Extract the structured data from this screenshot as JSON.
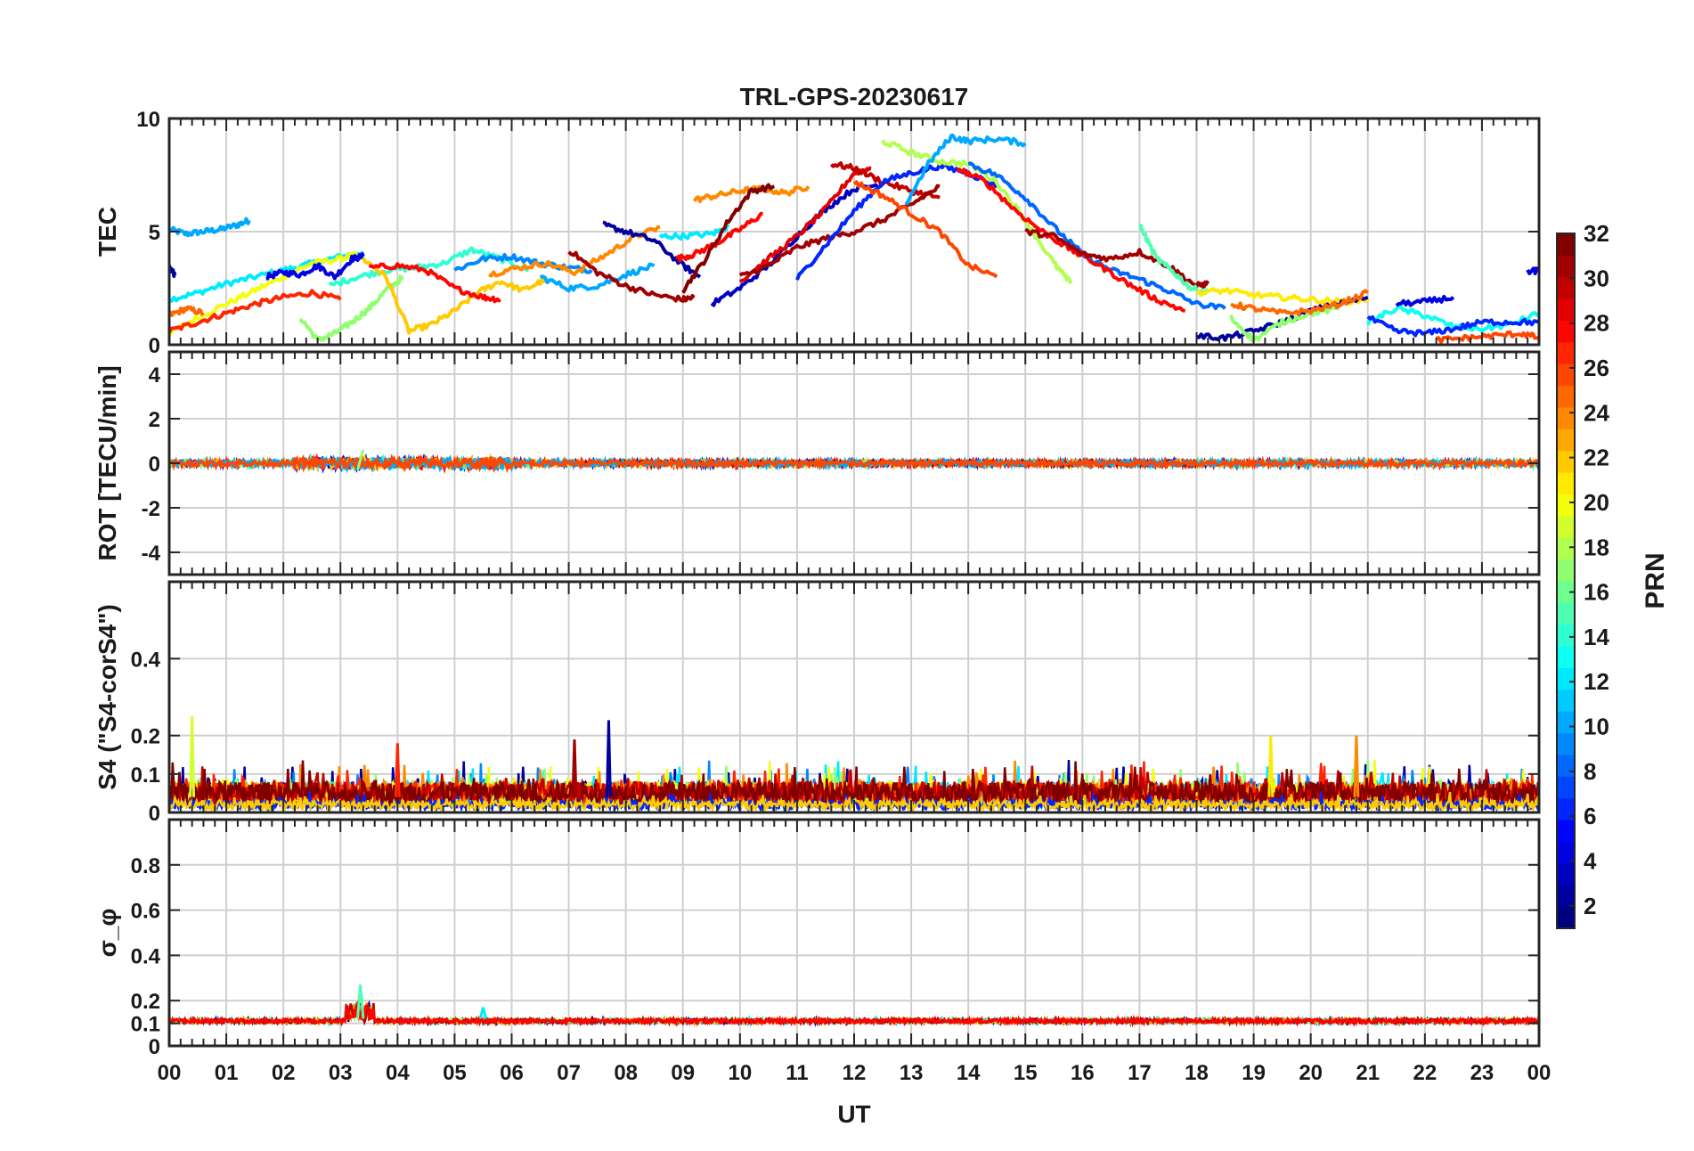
{
  "chart_data": {
    "title": "TRL-GPS-20230617",
    "type": "line",
    "x_axis": {
      "label": "UT",
      "range": [
        0,
        24
      ],
      "unit": "hours",
      "tick_labels": [
        "00",
        "01",
        "02",
        "03",
        "04",
        "05",
        "06",
        "07",
        "08",
        "09",
        "10",
        "11",
        "12",
        "13",
        "14",
        "15",
        "16",
        "17",
        "18",
        "19",
        "20",
        "21",
        "22",
        "23",
        "00"
      ],
      "grid": true
    },
    "colorbar": {
      "label": "PRN",
      "range": [
        1,
        32
      ],
      "colormap": "jet",
      "tick_labels": [
        "2",
        "4",
        "6",
        "8",
        "10",
        "12",
        "14",
        "16",
        "18",
        "20",
        "22",
        "24",
        "26",
        "28",
        "30",
        "32"
      ]
    },
    "panels": [
      {
        "name": "TEC",
        "ylabel": "TEC",
        "ylim": [
          0,
          10
        ],
        "yticks": [
          "0",
          "5",
          "10"
        ],
        "series": [
          {
            "prn": 10,
            "x": [
              0.0,
              0.3,
              0.6,
              0.9,
              1.2,
              1.4
            ],
            "y": [
              5.1,
              4.9,
              5.0,
              5.1,
              5.3,
              5.5
            ]
          },
          {
            "prn": 12,
            "x": [
              0.0,
              0.5,
              1.0,
              1.5,
              2.0,
              2.5,
              3.0,
              3.4
            ],
            "y": [
              2.0,
              2.3,
              2.7,
              3.0,
              3.3,
              3.6,
              3.9,
              4.1
            ]
          },
          {
            "prn": 20,
            "x": [
              0.0,
              0.5,
              1.0,
              1.5,
              2.0,
              2.5,
              3.0,
              3.3
            ],
            "y": [
              0.5,
              1.2,
              1.8,
              2.4,
              3.0,
              3.6,
              3.8,
              4.0
            ]
          },
          {
            "prn": 25,
            "x": [
              0.0,
              0.3,
              0.6
            ],
            "y": [
              1.3,
              1.6,
              1.4
            ]
          },
          {
            "prn": 27,
            "x": [
              0.0,
              0.5,
              1.0,
              1.5,
              2.0,
              2.5,
              3.0
            ],
            "y": [
              0.6,
              1.0,
              1.4,
              1.8,
              2.1,
              2.3,
              2.0
            ]
          },
          {
            "prn": 2,
            "x": [
              0.0,
              0.1
            ],
            "y": [
              3.4,
              3.1
            ]
          },
          {
            "prn": 4,
            "x": [
              1.7,
              2.0,
              2.3,
              2.6,
              2.9,
              3.2,
              3.4
            ],
            "y": [
              3.0,
              3.2,
              3.1,
              3.5,
              3.0,
              3.8,
              3.9
            ]
          },
          {
            "prn": 17,
            "x": [
              2.3,
              2.6,
              2.9,
              3.2,
              3.5,
              3.8,
              4.1
            ],
            "y": [
              1.2,
              0.2,
              0.5,
              1.0,
              1.6,
              2.4,
              3.0
            ]
          },
          {
            "prn": 14,
            "x": [
              2.8,
              3.3,
              3.8,
              4.3,
              4.8,
              5.3,
              5.8,
              6.3
            ],
            "y": [
              2.6,
              3.0,
              3.3,
              3.4,
              3.6,
              4.2,
              3.8,
              3.3
            ]
          },
          {
            "prn": 22,
            "x": [
              3.4,
              3.8,
              4.2,
              4.6,
              5.0,
              5.4,
              5.8,
              6.2,
              6.6
            ],
            "y": [
              3.8,
              3.0,
              0.6,
              0.9,
              1.5,
              2.3,
              2.8,
              2.4,
              2.9
            ]
          },
          {
            "prn": 28,
            "x": [
              3.5,
              4.0,
              4.5,
              5.0,
              5.5,
              5.8
            ],
            "y": [
              3.4,
              3.5,
              3.3,
              2.5,
              2.1,
              2.0
            ]
          },
          {
            "prn": 9,
            "x": [
              5.0,
              5.5,
              6.0,
              6.5,
              7.0,
              7.4
            ],
            "y": [
              3.3,
              3.8,
              3.9,
              3.6,
              3.4,
              3.3
            ]
          },
          {
            "prn": 24,
            "x": [
              5.6,
              6.1,
              6.6,
              7.1,
              7.6,
              8.1,
              8.6
            ],
            "y": [
              3.1,
              3.4,
              3.6,
              3.2,
              3.9,
              4.7,
              5.2
            ]
          },
          {
            "prn": 10,
            "x": [
              6.5,
              7.0,
              7.5,
              8.0,
              8.5
            ],
            "y": [
              3.0,
              2.5,
              2.6,
              3.1,
              3.5
            ]
          },
          {
            "prn": 2,
            "x": [
              7.6,
              8.0,
              8.5,
              9.0,
              9.3
            ],
            "y": [
              5.3,
              5.0,
              4.6,
              3.5,
              3.0
            ]
          },
          {
            "prn": 31,
            "x": [
              7.0,
              7.5,
              8.0,
              8.5,
              9.0,
              9.2
            ],
            "y": [
              4.2,
              3.2,
              2.6,
              2.2,
              2.0,
              2.1
            ]
          },
          {
            "prn": 12,
            "x": [
              8.6,
              9.0,
              9.5,
              9.8
            ],
            "y": [
              4.8,
              4.8,
              4.9,
              5.2
            ]
          },
          {
            "prn": 28,
            "x": [
              8.9,
              9.2,
              9.6,
              10.0,
              10.4
            ],
            "y": [
              3.8,
              4.0,
              4.5,
              5.1,
              5.8
            ]
          },
          {
            "prn": 24,
            "x": [
              9.2,
              9.6,
              10.0,
              10.4,
              10.8,
              11.2
            ],
            "y": [
              6.4,
              6.6,
              6.8,
              6.9,
              6.7,
              7.0
            ]
          },
          {
            "prn": 32,
            "x": [
              9.0,
              9.4,
              9.8,
              10.2,
              10.6
            ],
            "y": [
              2.4,
              3.8,
              5.5,
              6.8,
              7.0
            ]
          },
          {
            "prn": 3,
            "x": [
              9.5,
              10.0,
              10.5,
              11.0,
              11.5,
              12.0,
              12.5
            ],
            "y": [
              1.8,
              2.5,
              3.5,
              4.8,
              6.0,
              6.9,
              7.1
            ]
          },
          {
            "prn": 29,
            "x": [
              10.0,
              10.5,
              11.0,
              11.5,
              12.0,
              12.3
            ],
            "y": [
              2.8,
              3.8,
              4.8,
              6.0,
              7.6,
              7.8
            ]
          },
          {
            "prn": 30,
            "x": [
              11.6,
              12.0,
              12.5,
              13.0,
              13.5
            ],
            "y": [
              8.0,
              7.8,
              7.2,
              6.8,
              6.5
            ]
          },
          {
            "prn": 31,
            "x": [
              10.0,
              10.5,
              11.0,
              11.5,
              12.0,
              12.5,
              13.0,
              13.5
            ],
            "y": [
              3.0,
              3.5,
              4.3,
              4.7,
              5.0,
              5.5,
              6.2,
              7.0
            ]
          },
          {
            "prn": 6,
            "x": [
              11.0,
              11.5,
              12.0,
              12.5,
              13.0,
              13.5,
              14.0,
              14.5
            ],
            "y": [
              2.9,
              4.4,
              5.9,
              7.2,
              7.6,
              7.9,
              7.6,
              7.0
            ]
          },
          {
            "prn": 26,
            "x": [
              12.0,
              12.5,
              13.0,
              13.5,
              14.0,
              14.5
            ],
            "y": [
              7.2,
              6.6,
              5.8,
              5.0,
              3.5,
              3.0
            ]
          },
          {
            "prn": 18,
            "x": [
              12.5,
              13.0,
              13.5,
              14.0,
              14.5,
              15.0,
              15.5,
              15.8
            ],
            "y": [
              9.0,
              8.5,
              8.1,
              8.0,
              7.2,
              5.5,
              3.6,
              2.7
            ]
          },
          {
            "prn": 10,
            "x": [
              12.9,
              13.3,
              13.7,
              14.0,
              14.5,
              15.0
            ],
            "y": [
              6.2,
              8.0,
              9.2,
              9.0,
              9.1,
              8.9
            ]
          },
          {
            "prn": 8,
            "x": [
              14.0,
              14.5,
              15.0,
              15.5,
              16.0,
              16.5,
              17.0,
              17.5,
              18.0,
              18.5
            ],
            "y": [
              8.0,
              7.5,
              6.5,
              5.2,
              4.0,
              3.3,
              2.9,
              2.4,
              1.8,
              1.6
            ]
          },
          {
            "prn": 28,
            "x": [
              13.8,
              14.3,
              14.8,
              15.3,
              15.8,
              16.3,
              16.8,
              17.3,
              17.8
            ],
            "y": [
              7.8,
              7.2,
              6.0,
              5.0,
              4.2,
              3.5,
              2.7,
              2.0,
              1.5
            ]
          },
          {
            "prn": 31,
            "x": [
              15.0,
              15.5,
              16.0,
              16.5,
              17.0,
              17.5,
              18.0,
              18.2
            ],
            "y": [
              5.0,
              4.8,
              4.0,
              3.8,
              4.1,
              3.5,
              2.6,
              2.7
            ]
          },
          {
            "prn": 15,
            "x": [
              17.0,
              17.3,
              17.6,
              17.9,
              18.2
            ],
            "y": [
              5.3,
              3.8,
              3.2,
              2.5,
              2.3
            ]
          },
          {
            "prn": 21,
            "x": [
              18.0,
              18.5,
              19.0,
              19.5,
              20.0,
              20.5,
              21.0
            ],
            "y": [
              2.3,
              2.4,
              2.2,
              2.1,
              2.0,
              1.9,
              2.0
            ]
          },
          {
            "prn": 2,
            "x": [
              18.0,
              18.5,
              19.0,
              19.5,
              20.0,
              20.5,
              21.0
            ],
            "y": [
              0.4,
              0.3,
              0.6,
              1.0,
              1.5,
              1.8,
              2.1
            ]
          },
          {
            "prn": 17,
            "x": [
              18.6,
              19.0,
              19.5,
              20.0,
              20.5
            ],
            "y": [
              1.2,
              0.2,
              1.0,
              1.4,
              1.6
            ]
          },
          {
            "prn": 25,
            "x": [
              18.6,
              19.0,
              19.5,
              20.0,
              20.5,
              21.0
            ],
            "y": [
              1.8,
              1.6,
              1.4,
              1.5,
              1.8,
              2.3
            ]
          },
          {
            "prn": 13,
            "x": [
              21.0,
              21.5,
              22.0,
              22.5,
              23.0,
              23.5,
              24.0
            ],
            "y": [
              1.0,
              1.6,
              1.3,
              0.8,
              0.7,
              0.9,
              1.4
            ]
          },
          {
            "prn": 4,
            "x": [
              21.5,
              22.0,
              22.5
            ],
            "y": [
              1.8,
              1.9,
              2.1
            ]
          },
          {
            "prn": 6,
            "x": [
              21.0,
              21.5,
              22.0,
              22.5,
              23.0,
              23.5,
              24.0
            ],
            "y": [
              1.2,
              0.6,
              0.5,
              0.7,
              1.0,
              1.0,
              1.0
            ]
          },
          {
            "prn": 26,
            "x": [
              22.2,
              22.7,
              23.2,
              23.7,
              24.0
            ],
            "y": [
              0.2,
              0.3,
              0.4,
              0.5,
              0.3
            ]
          },
          {
            "prn": 4,
            "x": [
              23.8,
              24.0
            ],
            "y": [
              3.2,
              3.3
            ]
          }
        ]
      },
      {
        "name": "ROT",
        "ylabel": "ROT [TECU/min]",
        "ylim": [
          -5,
          5
        ],
        "yticks": [
          "-4",
          "-2",
          "0",
          "2",
          "4"
        ],
        "series": [
          {
            "prn": 5,
            "x": [
              0.0,
              24.0
            ],
            "y": [
              0.0,
              0.0
            ]
          },
          {
            "prn": 28,
            "x": [
              0.0,
              24.0
            ],
            "y": [
              0.0,
              0.0
            ]
          },
          {
            "prn": 32,
            "x": [
              7.0,
              18.0
            ],
            "y": [
              0.0,
              0.0
            ]
          },
          {
            "prn": 17,
            "x": [
              3.4,
              3.3
            ],
            "y": [
              0.6,
              -0.3
            ]
          }
        ]
      },
      {
        "name": "S4",
        "ylabel": "S4 (\"S4-corS4\")",
        "ylim": [
          0,
          0.6
        ],
        "yticks": [
          "0",
          "0.1",
          "0.2",
          "0.4"
        ],
        "peaks": [
          {
            "prn": 19,
            "x": 0.4,
            "y": 0.25
          },
          {
            "prn": 2,
            "x": 7.7,
            "y": 0.24
          },
          {
            "prn": 21,
            "x": 19.3,
            "y": 0.2
          },
          {
            "prn": 24,
            "x": 20.8,
            "y": 0.2
          },
          {
            "prn": 31,
            "x": 7.1,
            "y": 0.19
          },
          {
            "prn": 27,
            "x": 4.0,
            "y": 0.18
          }
        ],
        "typical_range": [
          0.0,
          0.12
        ]
      },
      {
        "name": "sigma_phi",
        "ylabel": "σ_φ",
        "ylim": [
          0,
          1
        ],
        "yticks": [
          "0",
          "0.1",
          "0.2",
          "0.4",
          "0.6",
          "0.8"
        ],
        "baseline": 0.11,
        "peaks": [
          {
            "prn": 15,
            "x": 3.35,
            "y": 0.27
          },
          {
            "prn": 12,
            "x": 5.5,
            "y": 0.17
          }
        ]
      }
    ]
  }
}
